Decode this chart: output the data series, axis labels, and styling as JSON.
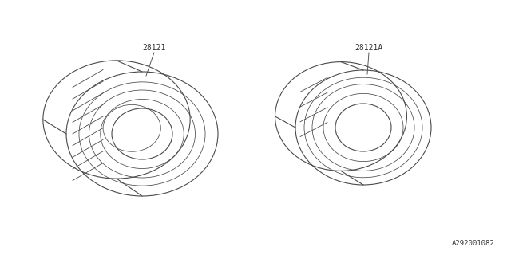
{
  "bg_color": "#ffffff",
  "line_color": "#4a4a4a",
  "line_width": 0.8,
  "label_color": "#333333",
  "label_fontsize": 7,
  "label_font": "monospace",
  "diagram_id": "A292001082",
  "diagram_id_fontsize": 6.5,
  "tire1_label": "28121",
  "tire2_label": "28121A"
}
